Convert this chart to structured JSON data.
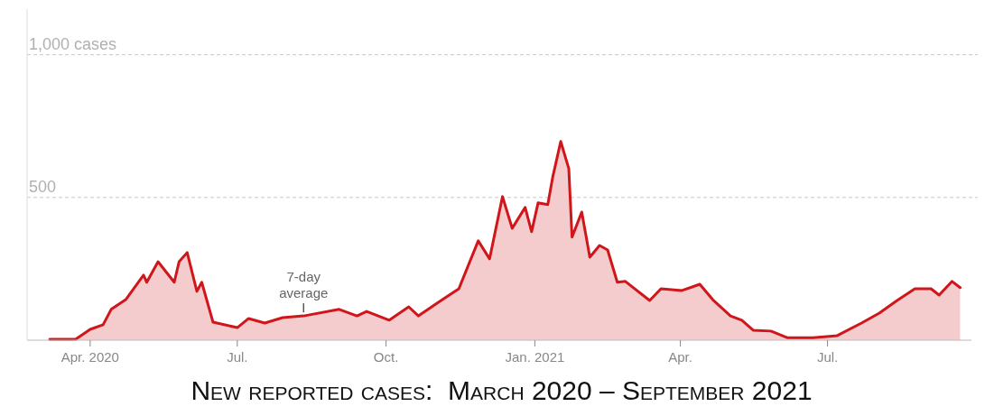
{
  "chart_data": {
    "type": "area",
    "title": "New reported cases:  March 2020 – September 2021",
    "x": [
      "2020-03-07",
      "2020-03-23",
      "2020-04-01",
      "2020-04-09",
      "2020-04-14",
      "2020-04-23",
      "2020-05-04",
      "2020-05-06",
      "2020-05-13",
      "2020-05-23",
      "2020-05-26",
      "2020-05-31",
      "2020-06-06",
      "2020-06-09",
      "2020-06-16",
      "2020-07-01",
      "2020-07-08",
      "2020-07-18",
      "2020-07-29",
      "2020-08-11",
      "2020-09-02",
      "2020-09-13",
      "2020-09-19",
      "2020-10-03",
      "2020-10-15",
      "2020-10-21",
      "2020-11-04",
      "2020-11-15",
      "2020-11-27",
      "2020-12-04",
      "2020-12-12",
      "2020-12-18",
      "2020-12-26",
      "2020-12-30",
      "2021-01-03",
      "2021-01-09",
      "2021-01-12",
      "2021-01-17",
      "2021-01-22",
      "2021-01-24",
      "2021-01-30",
      "2021-02-04",
      "2021-02-10",
      "2021-02-15",
      "2021-02-21",
      "2021-02-26",
      "2021-03-13",
      "2021-03-20",
      "2021-04-02",
      "2021-04-13",
      "2021-04-21",
      "2021-05-02",
      "2021-05-09",
      "2021-05-16",
      "2021-05-27",
      "2021-06-06",
      "2021-06-22",
      "2021-07-07",
      "2021-07-22",
      "2021-08-02",
      "2021-08-13",
      "2021-08-24",
      "2021-09-03",
      "2021-09-08",
      "2021-09-16",
      "2021-09-21"
    ],
    "series": [
      {
        "color": "#d0161b",
        "values": [
          3,
          3,
          38,
          54,
          108,
          142,
          228,
          203,
          275,
          203,
          275,
          307,
          171,
          203,
          63,
          44,
          76,
          60,
          79,
          85,
          108,
          85,
          101,
          70,
          117,
          85,
          139,
          180,
          348,
          285,
          503,
          392,
          465,
          380,
          481,
          475,
          570,
          696,
          601,
          361,
          449,
          291,
          332,
          316,
          203,
          206,
          139,
          180,
          174,
          196,
          142,
          85,
          70,
          35,
          32,
          9,
          9,
          16,
          60,
          95,
          139,
          180,
          180,
          158,
          206,
          184
        ]
      }
    ],
    "xlim": [
      "2020-02-22",
      "2021-09-28"
    ],
    "xticks": [
      {
        "value": "2020-04-01",
        "label": "Apr. 2020"
      },
      {
        "value": "2020-07-01",
        "label": "Jul."
      },
      {
        "value": "2020-10-01",
        "label": "Oct."
      },
      {
        "value": "2021-01-01",
        "label": "Jan. 2021"
      },
      {
        "value": "2021-04-01",
        "label": "Apr."
      },
      {
        "value": "2021-07-01",
        "label": "Jul."
      }
    ],
    "ylim": [
      0,
      1160
    ],
    "yticks": [
      {
        "value": 500,
        "label": "500"
      },
      {
        "value": 1000,
        "label": "1,000 cases"
      }
    ],
    "grid": "y",
    "annotations": [
      {
        "text": "7-day average",
        "x": "2020-08-11",
        "y": 85
      }
    ]
  }
}
